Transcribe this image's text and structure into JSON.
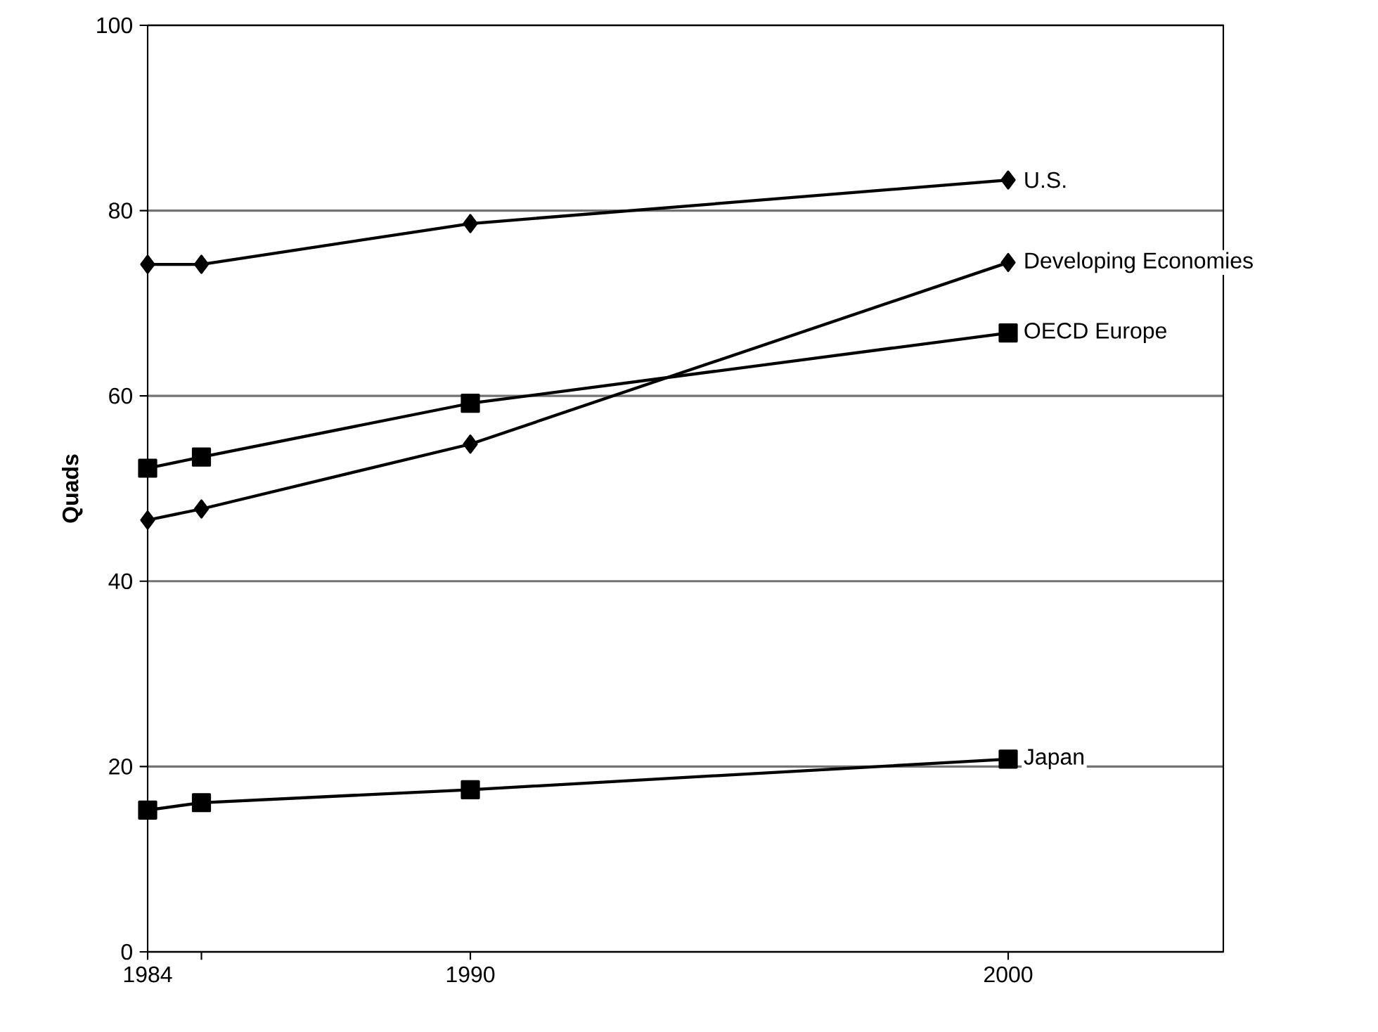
{
  "chart_data": {
    "type": "line",
    "ylabel": "Quads",
    "x": [
      1984,
      1985,
      1990,
      2000
    ],
    "xlim": [
      1984,
      2004
    ],
    "ylim": [
      0,
      100
    ],
    "xticks": [
      1984,
      {
        "value": 1985,
        "label": null
      },
      1990,
      2000
    ],
    "yticks": [
      0,
      20,
      40,
      60,
      80,
      100
    ],
    "grid": "y",
    "series": [
      {
        "name": "U.S.",
        "color": "#000000",
        "marker": "diamond",
        "values": [
          74.2,
          74.2,
          78.6,
          83.3
        ]
      },
      {
        "name": "Developing Economies",
        "color": "#000000",
        "marker": "diamond",
        "values": [
          46.6,
          47.8,
          54.8,
          74.4
        ]
      },
      {
        "name": "OECD Europe",
        "color": "#000000",
        "marker": "square",
        "values": [
          52.2,
          53.4,
          59.2,
          66.8
        ]
      },
      {
        "name": "Japan",
        "color": "#000000",
        "marker": "square",
        "values": [
          15.3,
          16.1,
          17.5,
          20.8
        ]
      }
    ]
  }
}
